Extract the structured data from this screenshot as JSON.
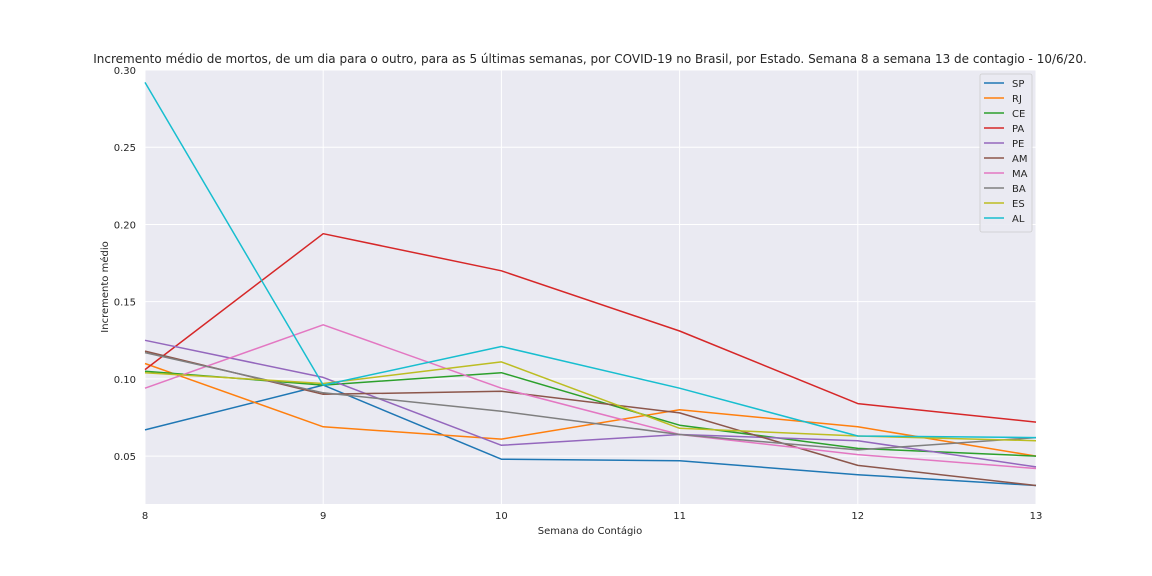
{
  "chart_data": {
    "type": "line",
    "title": "Incremento médio de mortos, de um dia para o outro, para as 5 últimas semanas, por COVID-19 no Brasil, por Estado. Semana 8 a semana 13 de contagio - 10/6/20.",
    "xlabel": "Semana do Contágio",
    "ylabel": "Incremento médio",
    "x": [
      8,
      9,
      10,
      11,
      12,
      13
    ],
    "xlim": [
      8,
      13
    ],
    "ylim": [
      0.019,
      0.3
    ],
    "xticks": [
      "8",
      "9",
      "10",
      "11",
      "12",
      "13"
    ],
    "yticks": [
      0.05,
      0.1,
      0.15,
      0.2,
      0.25,
      0.3
    ],
    "ytick_labels": [
      "0.05",
      "0.10",
      "0.15",
      "0.20",
      "0.25",
      "0.30"
    ],
    "grid": true,
    "legend_position": "top-right",
    "background": "#eaeaf2",
    "series": [
      {
        "name": "SP",
        "color": "#1f77b4",
        "values": [
          0.067,
          0.096,
          0.048,
          0.047,
          0.038,
          0.031
        ]
      },
      {
        "name": "RJ",
        "color": "#ff7f0e",
        "values": [
          0.11,
          0.069,
          0.061,
          0.08,
          0.069,
          0.05
        ]
      },
      {
        "name": "CE",
        "color": "#2ca02c",
        "values": [
          0.105,
          0.096,
          0.104,
          0.07,
          0.055,
          0.05
        ]
      },
      {
        "name": "PA",
        "color": "#d62728",
        "values": [
          0.106,
          0.194,
          0.17,
          0.131,
          0.084,
          0.072
        ]
      },
      {
        "name": "PE",
        "color": "#9467bd",
        "values": [
          0.125,
          0.101,
          0.057,
          0.064,
          0.06,
          0.043
        ]
      },
      {
        "name": "AM",
        "color": "#8c564b",
        "values": [
          0.118,
          0.09,
          0.092,
          0.078,
          0.044,
          0.031
        ]
      },
      {
        "name": "MA",
        "color": "#e377c2",
        "values": [
          0.094,
          0.135,
          0.094,
          0.064,
          0.051,
          0.042
        ]
      },
      {
        "name": "BA",
        "color": "#7f7f7f",
        "values": [
          0.117,
          0.091,
          0.079,
          0.064,
          0.054,
          0.062
        ]
      },
      {
        "name": "ES",
        "color": "#bcbd22",
        "values": [
          0.104,
          0.097,
          0.111,
          0.068,
          0.063,
          0.06
        ]
      },
      {
        "name": "AL",
        "color": "#17becf",
        "values": [
          0.292,
          0.096,
          0.121,
          0.094,
          0.063,
          0.062
        ]
      }
    ]
  }
}
